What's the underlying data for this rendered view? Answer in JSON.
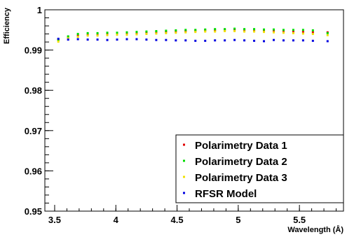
{
  "chart_data": {
    "type": "scatter",
    "title": "",
    "xlabel": "Wavelength (Å)",
    "ylabel": "Efficiency",
    "xlim": [
      3.42,
      5.86
    ],
    "ylim": [
      0.95,
      1.0
    ],
    "x_ticks": [
      3.5,
      4,
      4.5,
      5,
      5.5
    ],
    "x_tick_labels": [
      "3.5",
      "4",
      "4.5",
      "5",
      "5.5"
    ],
    "y_ticks": [
      0.95,
      0.96,
      0.97,
      0.98,
      0.99,
      1.0
    ],
    "y_tick_labels": [
      "0.95",
      "0.96",
      "0.97",
      "0.98",
      "0.99",
      "1"
    ],
    "grid": false,
    "legend_position": "bottom-right",
    "x": [
      3.53,
      3.61,
      3.69,
      3.77,
      3.85,
      3.93,
      4.01,
      4.09,
      4.17,
      4.25,
      4.33,
      4.41,
      4.49,
      4.57,
      4.65,
      4.73,
      4.81,
      4.89,
      4.97,
      5.05,
      5.13,
      5.21,
      5.29,
      5.37,
      5.45,
      5.53,
      5.61,
      5.73
    ],
    "series": [
      {
        "name": "Polarimetry Data 1",
        "color": "#e00000",
        "values": [
          0.9925,
          0.9932,
          0.9936,
          0.9938,
          0.9938,
          0.9939,
          0.994,
          0.9941,
          0.9941,
          0.9943,
          0.9944,
          0.9945,
          0.9946,
          0.9947,
          0.9948,
          0.9949,
          0.9949,
          0.995,
          0.995,
          0.9949,
          0.9948,
          0.9948,
          0.9947,
          0.9946,
          0.9946,
          0.9945,
          0.9944,
          0.9944
        ]
      },
      {
        "name": "Polarimetry Data 2",
        "color": "#00dd00",
        "values": [
          0.9926,
          0.9934,
          0.994,
          0.9942,
          0.9942,
          0.9943,
          0.9943,
          0.9944,
          0.9945,
          0.9946,
          0.9947,
          0.9948,
          0.9949,
          0.995,
          0.995,
          0.9951,
          0.9952,
          0.9952,
          0.9953,
          0.9952,
          0.9952,
          0.9951,
          0.9951,
          0.995,
          0.995,
          0.995,
          0.9949,
          0.9942
        ]
      },
      {
        "name": "Polarimetry Data 3",
        "color": "#f0e000",
        "values": [
          0.9921,
          0.9929,
          0.9933,
          0.9936,
          0.9936,
          0.9937,
          0.9938,
          0.9938,
          0.9939,
          0.994,
          0.9941,
          0.9942,
          0.9943,
          0.9944,
          0.9945,
          0.9946,
          0.9946,
          0.9947,
          0.9947,
          0.9946,
          0.9946,
          0.9945,
          0.9944,
          0.9943,
          0.9942,
          0.9941,
          0.994,
          0.9937
        ]
      },
      {
        "name": "RFSR Model",
        "color": "#0000e0",
        "values": [
          0.9928,
          0.9926,
          0.9927,
          0.9926,
          0.9926,
          0.9925,
          0.9926,
          0.9927,
          0.9927,
          0.9926,
          0.9925,
          0.9925,
          0.9924,
          0.9924,
          0.9923,
          0.9923,
          0.9924,
          0.9924,
          0.9925,
          0.9924,
          0.9923,
          0.9922,
          0.9925,
          0.9924,
          0.9924,
          0.9924,
          0.9923,
          0.9922
        ]
      }
    ]
  }
}
